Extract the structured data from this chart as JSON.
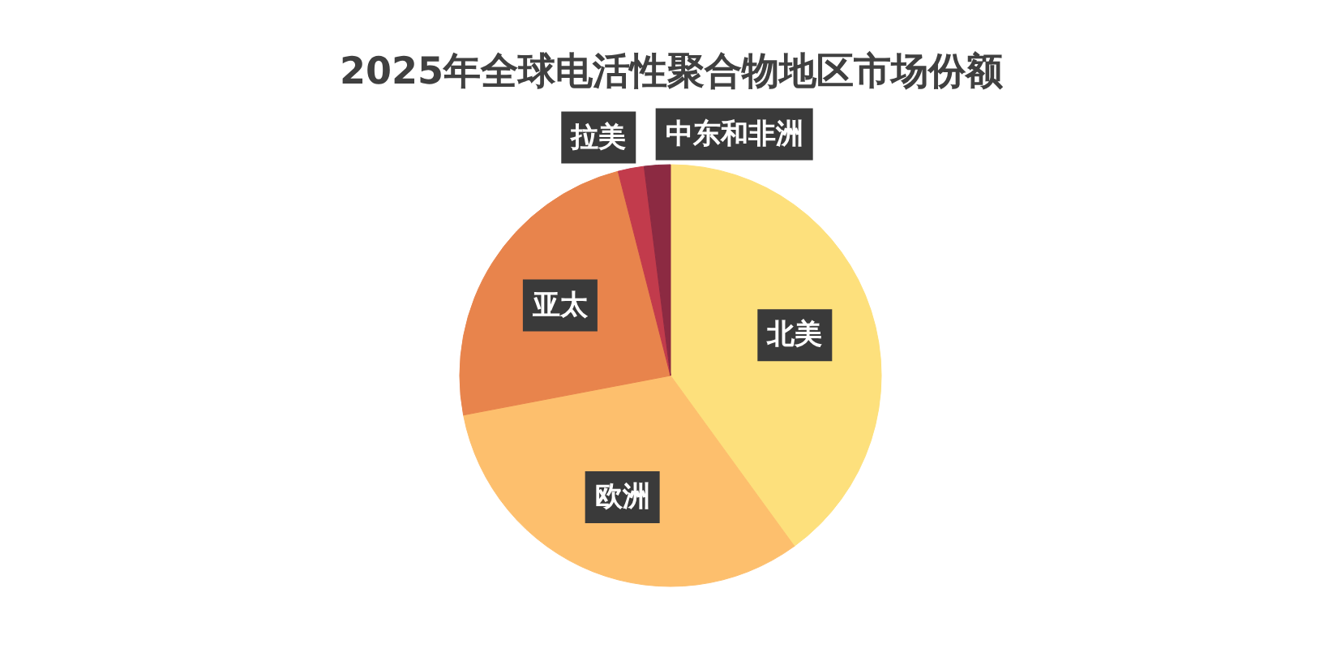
{
  "chart_data": {
    "type": "pie",
    "title": "2025年全球电活性聚合物地区市场份额",
    "categories": [
      "北美",
      "欧洲",
      "亚太",
      "拉美",
      "中东和非洲"
    ],
    "values": [
      40,
      32,
      24,
      2,
      2
    ],
    "colors": [
      "#fde07c",
      "#fdbf6d",
      "#e8844c",
      "#c23b4c",
      "#8c2a42"
    ]
  }
}
